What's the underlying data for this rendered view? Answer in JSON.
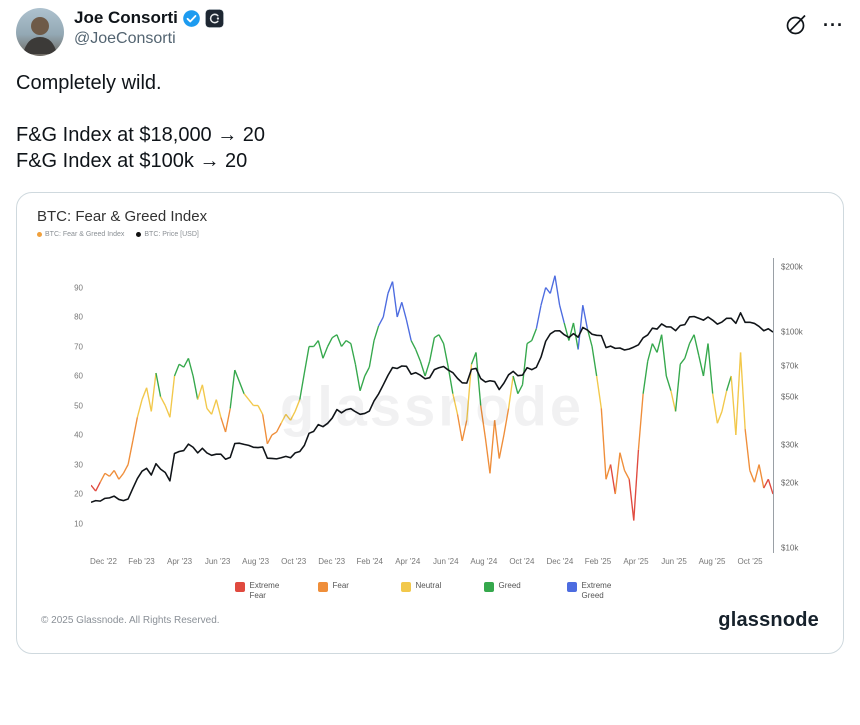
{
  "header": {
    "display_name": "Joe Consorti",
    "handle": "@JoeConsorti",
    "more_label": "···"
  },
  "icons": {
    "verified": "blue-verified-checkmark",
    "affiliation": "dark-square-affiliation-badge",
    "grok": "slashed-circle",
    "more": "three-dots"
  },
  "tweet": {
    "lines": [
      "Completely wild.",
      "F&G Index at $18,000 → 20",
      "F&G Index at $100k → 20"
    ]
  },
  "chart_card": {
    "title": "BTC: Fear & Greed Index",
    "legend_top": [
      {
        "label": "BTC: Fear & Greed Index",
        "color": "#f0a03c"
      },
      {
        "label": "BTC: Price [USD]",
        "color": "#111111"
      }
    ],
    "watermark": "glassnode",
    "footer_left": "© 2025 Glassnode. All Rights Reserved.",
    "footer_brand": "glassnode"
  },
  "chart_data": {
    "type": "line",
    "title": "BTC: Fear & Greed Index",
    "x_range": [
      "Nov 2022",
      "Nov 2025"
    ],
    "x_tick_labels": [
      "Dec '22",
      "Feb '23",
      "Apr '23",
      "Jun '23",
      "Aug '23",
      "Oct '23",
      "Dec '23",
      "Feb '24",
      "Apr '24",
      "Jun '24",
      "Aug '24",
      "Oct '24",
      "Dec '24",
      "Feb '25",
      "Apr '25",
      "Jun '25",
      "Aug '25",
      "Oct '25"
    ],
    "left_axis": {
      "label": "Fear & Greed Index",
      "ticks": [
        10,
        20,
        30,
        40,
        50,
        60,
        70,
        80,
        90
      ],
      "range": [
        0,
        100
      ],
      "scale": "linear"
    },
    "right_axis": {
      "label": "BTC Price USD",
      "ticks": [
        "$10k",
        "$20k",
        "$30k",
        "$50k",
        "$70k",
        "$100k",
        "$200k"
      ],
      "tick_values": [
        10,
        20,
        30,
        50,
        70,
        100,
        200
      ],
      "range": [
        9.5,
        220
      ],
      "scale": "log",
      "unit": "USD thousands"
    },
    "grid": false,
    "legend_position": "bottom",
    "bands": [
      {
        "label": "Extreme Fear",
        "color": "#e04a3f",
        "max": 25
      },
      {
        "label": "Fear",
        "color": "#ef8e3a",
        "max": 45
      },
      {
        "label": "Neutral",
        "color": "#f2c84b",
        "max": 55
      },
      {
        "label": "Greed",
        "color": "#35a84c",
        "max": 75
      },
      {
        "label": "Extreme Greed",
        "color": "#4d6ce0",
        "max": 100
      }
    ],
    "series": [
      {
        "name": "BTC: Fear & Greed Index",
        "axis": "left",
        "cadence": "weekly",
        "values": [
          23,
          21,
          24,
          27,
          26,
          28,
          25,
          27,
          30,
          38,
          46,
          52,
          56,
          48,
          61,
          53,
          50,
          46,
          60,
          64,
          63,
          66,
          60,
          52,
          57,
          49,
          47,
          52,
          46,
          41,
          49,
          62,
          58,
          54,
          52,
          50,
          50,
          47,
          37,
          40,
          41,
          44,
          47,
          45,
          48,
          52,
          61,
          70,
          70,
          72,
          66,
          70,
          73,
          74,
          70,
          72,
          71,
          64,
          55,
          60,
          63,
          72,
          77,
          80,
          88,
          92,
          80,
          85,
          79,
          72,
          69,
          65,
          60,
          65,
          73,
          74,
          71,
          63,
          54,
          47,
          38,
          45,
          64,
          68,
          50,
          39,
          27,
          45,
          32,
          40,
          49,
          60,
          54,
          57,
          71,
          72,
          76,
          84,
          90,
          88,
          94,
          84,
          78,
          72,
          78,
          69,
          84,
          76,
          70,
          60,
          49,
          25,
          30,
          20,
          34,
          28,
          25,
          11,
          35,
          54,
          65,
          71,
          68,
          74,
          60,
          55,
          48,
          64,
          66,
          71,
          74,
          67,
          60,
          71,
          54,
          44,
          48,
          55,
          60,
          40,
          68,
          42,
          28,
          24,
          30,
          22,
          25,
          20
        ]
      },
      {
        "name": "BTC: Price [USD]",
        "axis": "right",
        "cadence": "weekly",
        "unit": "USD thousands",
        "values": [
          16.3,
          16.6,
          16.5,
          17.0,
          17.1,
          17.4,
          16.8,
          16.6,
          16.9,
          18.9,
          21.0,
          22.7,
          23.4,
          21.8,
          24.6,
          23.2,
          22.4,
          20.5,
          27.4,
          28.0,
          28.3,
          30.3,
          29.3,
          27.6,
          29.0,
          27.6,
          26.9,
          27.2,
          27.2,
          25.8,
          26.3,
          30.5,
          30.6,
          30.2,
          29.9,
          29.3,
          29.2,
          29.4,
          26.1,
          26.0,
          25.9,
          26.2,
          26.6,
          26.2,
          27.6,
          28.0,
          29.9,
          34.0,
          34.7,
          37.3,
          36.5,
          37.8,
          40.0,
          43.8,
          42.3,
          43.7,
          44.2,
          42.8,
          41.6,
          42.0,
          43.1,
          48.0,
          51.7,
          57.0,
          63.0,
          68.5,
          67.8,
          69.6,
          69.4,
          63.8,
          64.9,
          63.1,
          60.8,
          61.5,
          67.0,
          68.3,
          69.3,
          66.7,
          64.9,
          61.0,
          58.2,
          58.0,
          67.2,
          67.9,
          60.9,
          58.7,
          59.5,
          59.0,
          54.2,
          58.0,
          63.4,
          65.8,
          62.8,
          63.2,
          68.4,
          67.0,
          68.7,
          76.6,
          90.6,
          98.0,
          101.2,
          101.4,
          97.2,
          94.3,
          98.3,
          94.6,
          104.9,
          102.1,
          97.7,
          96.6,
          96.2,
          84.7,
          86.1,
          84.0,
          84.4,
          82.6,
          83.5,
          85.2,
          87.3,
          94.0,
          97.0,
          104.2,
          103.2,
          109.0,
          105.7,
          105.5,
          101.5,
          107.2,
          108.2,
          117.5,
          118.0,
          115.8,
          113.5,
          117.4,
          113.4,
          108.8,
          111.2,
          115.8,
          115.7,
          109.7,
          122.6,
          110.8,
          111.0,
          109.6,
          106.2,
          101.3,
          103.5,
          100.0
        ]
      }
    ]
  }
}
